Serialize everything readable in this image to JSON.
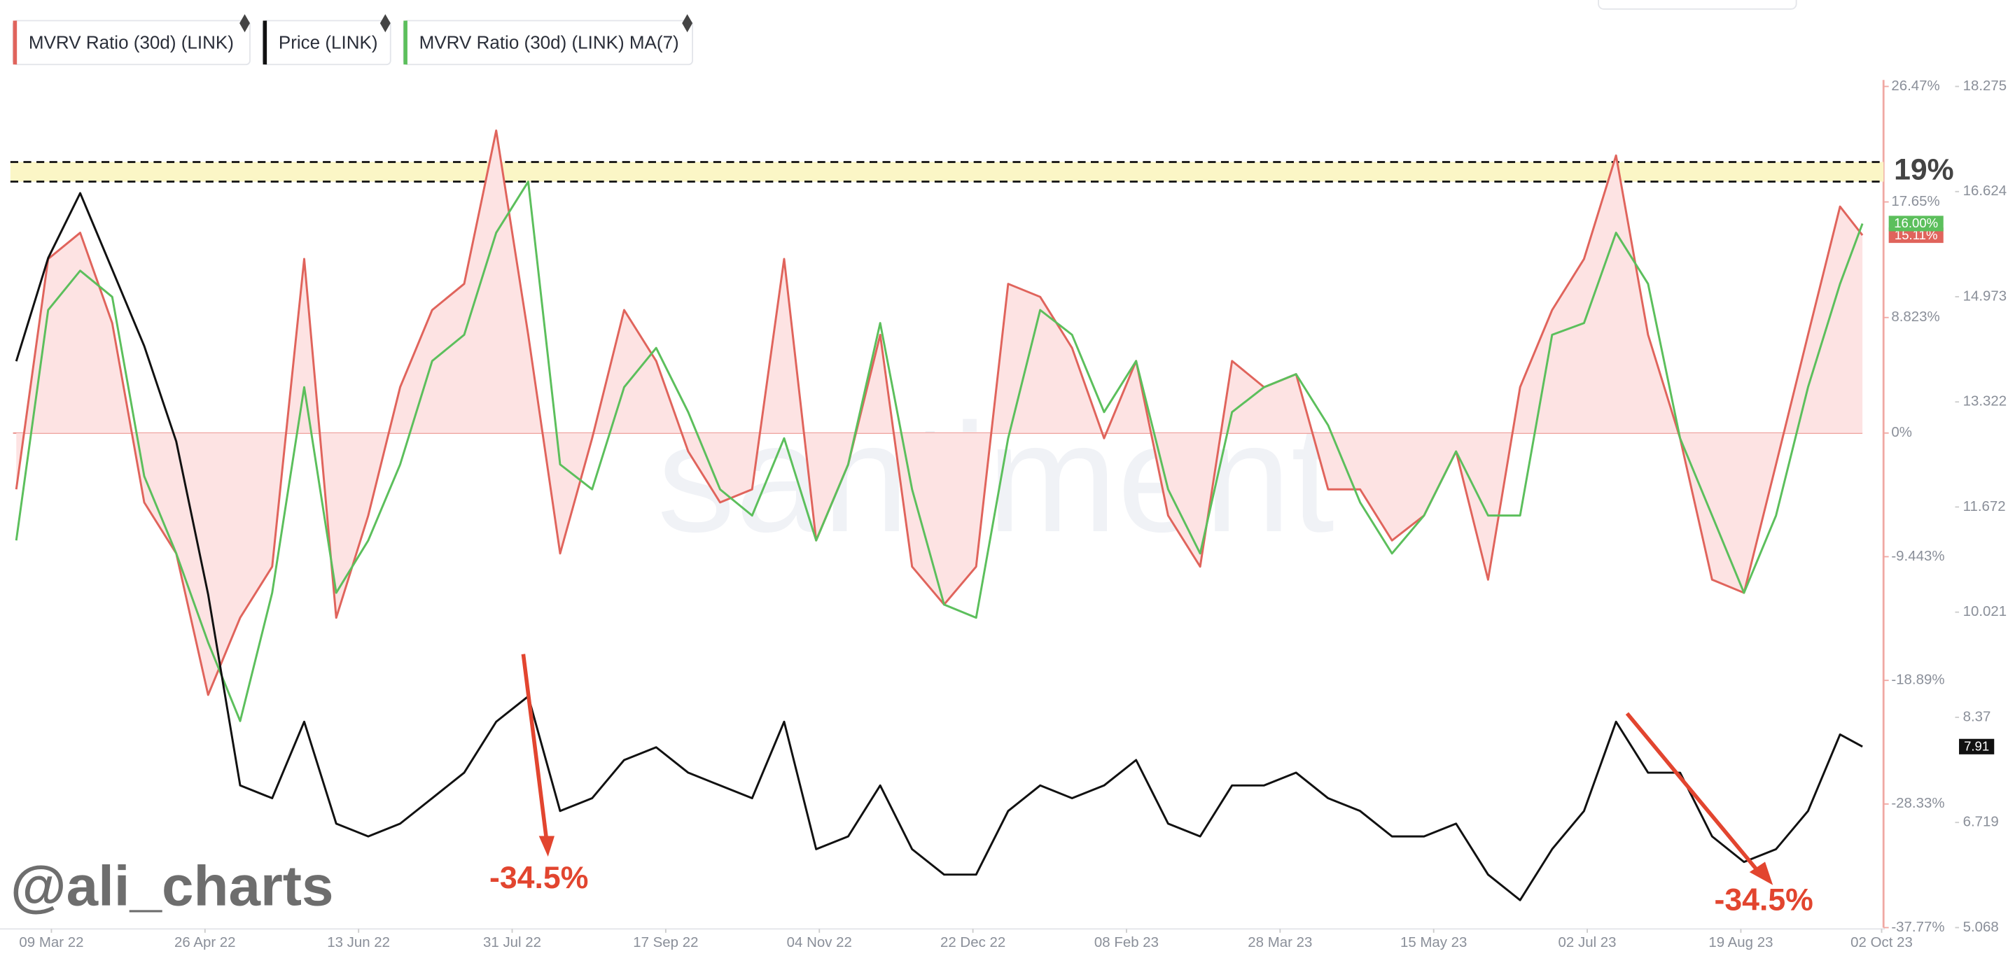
{
  "chart_data": {
    "type": "line",
    "watermark": "santiment",
    "credit": "@ali_charts",
    "x": [
      "2022-02-26",
      "2022-03-08",
      "2022-03-18",
      "2022-03-28",
      "2022-04-07",
      "2022-04-17",
      "2022-04-27",
      "2022-05-07",
      "2022-05-17",
      "2022-05-27",
      "2022-06-06",
      "2022-06-16",
      "2022-06-26",
      "2022-07-06",
      "2022-07-16",
      "2022-07-26",
      "2022-08-05",
      "2022-08-15",
      "2022-08-25",
      "2022-09-04",
      "2022-09-14",
      "2022-09-24",
      "2022-10-04",
      "2022-10-14",
      "2022-10-24",
      "2022-11-03",
      "2022-11-13",
      "2022-11-23",
      "2022-12-03",
      "2022-12-13",
      "2022-12-23",
      "2023-01-02",
      "2023-01-12",
      "2023-01-22",
      "2023-02-01",
      "2023-02-11",
      "2023-02-21",
      "2023-03-03",
      "2023-03-13",
      "2023-03-23",
      "2023-04-02",
      "2023-04-12",
      "2023-04-22",
      "2023-05-02",
      "2023-05-12",
      "2023-05-22",
      "2023-06-01",
      "2023-06-11",
      "2023-06-21",
      "2023-07-01",
      "2023-07-11",
      "2023-07-21",
      "2023-07-31",
      "2023-08-10",
      "2023-08-20",
      "2023-08-30",
      "2023-09-09",
      "2023-09-19",
      "2023-09-26"
    ],
    "xlim": [
      "2022-02-25",
      "2023-10-03"
    ],
    "xticks": [
      {
        "value": "2022-03-09",
        "label": "09 Mar 22"
      },
      {
        "value": "2022-04-26",
        "label": "26 Apr 22"
      },
      {
        "value": "2022-06-13",
        "label": "13 Jun 22"
      },
      {
        "value": "2022-07-31",
        "label": "31 Jul 22"
      },
      {
        "value": "2022-09-17",
        "label": "17 Sep 22"
      },
      {
        "value": "2022-11-04",
        "label": "04 Nov 22"
      },
      {
        "value": "2022-12-22",
        "label": "22 Dec 22"
      },
      {
        "value": "2023-02-08",
        "label": "08 Feb 23"
      },
      {
        "value": "2023-03-28",
        "label": "28 Mar 23"
      },
      {
        "value": "2023-05-15",
        "label": "15 May 23"
      },
      {
        "value": "2023-07-02",
        "label": "02 Jul 23"
      },
      {
        "value": "2023-08-19",
        "label": "19 Aug 23"
      },
      {
        "value": "2023-10-02",
        "label": "02 Oct 23"
      }
    ],
    "ylim": [
      -37.77,
      26.47
    ],
    "yticks": [
      {
        "value": -37.77,
        "label": "-37.77%"
      },
      {
        "value": -28.33,
        "label": "-28.33%"
      },
      {
        "value": -18.89,
        "label": "-18.89%"
      },
      {
        "value": -9.443,
        "label": "-9.443%"
      },
      {
        "value": 0,
        "label": "0%"
      },
      {
        "value": 8.823,
        "label": "8.823%"
      },
      {
        "value": 17.65,
        "label": "17.65%"
      },
      {
        "value": 26.47,
        "label": "26.47%"
      }
    ],
    "y2lim": [
      5.068,
      18.275
    ],
    "y2ticks": [
      5.068,
      6.719,
      8.37,
      10.021,
      11.672,
      13.322,
      14.973,
      16.624,
      18.275
    ],
    "series": [
      {
        "name": "MVRV Ratio (30d) (LINK)",
        "color": "#e0645c",
        "fill": "#fde3e3",
        "end_label": "15.11%",
        "values": [
          -4.3,
          13.3,
          15.3,
          8.4,
          -5.3,
          -9.2,
          -20,
          -14.1,
          -10.2,
          13.3,
          -14.1,
          -6.3,
          3.5,
          9.4,
          11.4,
          23.1,
          7.5,
          -9.2,
          -0.4,
          9.4,
          5.5,
          -1.4,
          -5.3,
          -4.3,
          13.3,
          -8.2,
          -2.4,
          7.5,
          -10.2,
          -13.1,
          -10.2,
          11.4,
          10.4,
          6.5,
          -0.4,
          5.5,
          -6.3,
          -10.2,
          5.5,
          3.5,
          4.5,
          -4.3,
          -4.3,
          -8.2,
          -6.3,
          -1.4,
          -11.2,
          3.5,
          9.4,
          13.3,
          21.2,
          7.5,
          -0.4,
          -11.2,
          -12.2,
          -2.4,
          7.5,
          17.3,
          15.11
        ]
      },
      {
        "name": "Price (LINK)",
        "color": "#111111",
        "axis": "y2",
        "end_label": "7.91",
        "values": [
          13.96,
          15.58,
          16.6,
          15.4,
          14.2,
          12.7,
          10.3,
          7.3,
          7.1,
          8.3,
          6.7,
          6.5,
          6.7,
          7.1,
          7.5,
          8.3,
          8.7,
          6.9,
          7.1,
          7.7,
          7.9,
          7.5,
          7.3,
          7.1,
          8.3,
          6.3,
          6.5,
          7.3,
          6.3,
          5.9,
          5.9,
          6.9,
          7.3,
          7.1,
          7.3,
          7.7,
          6.7,
          6.5,
          7.3,
          7.3,
          7.5,
          7.1,
          6.9,
          6.5,
          6.5,
          6.7,
          5.9,
          5.5,
          6.3,
          6.9,
          8.3,
          7.5,
          7.5,
          6.5,
          6.1,
          6.3,
          6.9,
          8.1,
          7.91
        ]
      },
      {
        "name": "MVRV Ratio (30d) (LINK) MA(7)",
        "color": "#5cbf5c",
        "end_label": "16.00%",
        "values": [
          -8.2,
          9.4,
          12.4,
          10.4,
          -3.3,
          -9.2,
          -16,
          -22,
          -12.2,
          3.5,
          -12.2,
          -8.2,
          -2.4,
          5.5,
          7.5,
          15.3,
          19.2,
          -2.4,
          -4.3,
          3.5,
          6.5,
          1.6,
          -4.3,
          -6.3,
          -0.4,
          -8.2,
          -2.4,
          8.4,
          -4.3,
          -13.1,
          -14.1,
          -0.4,
          9.4,
          7.5,
          1.6,
          5.5,
          -4.3,
          -9.2,
          1.6,
          3.5,
          4.5,
          0.6,
          -5.3,
          -9.2,
          -6.3,
          -1.4,
          -6.3,
          -6.3,
          7.5,
          8.4,
          15.3,
          11.4,
          -0.4,
          -6.3,
          -12.2,
          -6.3,
          3.5,
          11.4,
          16.0
        ]
      }
    ],
    "band": {
      "label": "19%",
      "range": [
        19.2,
        20.7
      ]
    },
    "annotations": [
      "-34.5%",
      "-34.5%"
    ]
  }
}
